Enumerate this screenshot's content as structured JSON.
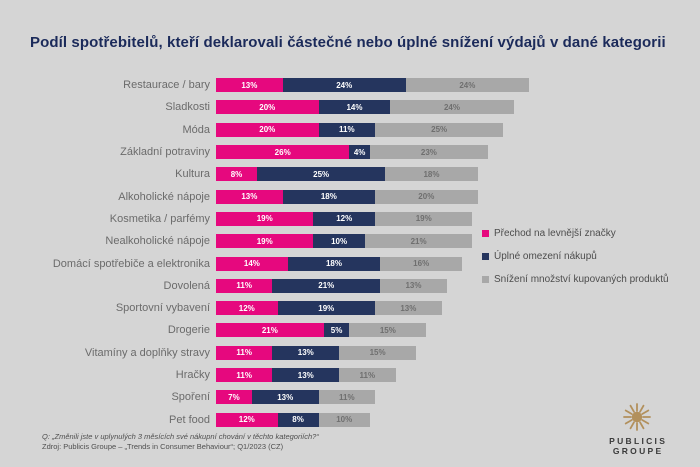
{
  "title": "Podíl spotřebitelů, kteří deklarovali částečné nebo úplné snížení výdajů v dané kategorii",
  "chart_data": {
    "type": "bar",
    "orientation": "horizontal",
    "stacked": true,
    "grid": false,
    "legend_position": "right",
    "value_suffix": "%",
    "categories": [
      "Restaurace / bary",
      "Sladkosti",
      "Móda",
      "Základní potraviny",
      "Kultura",
      "Alkoholické nápoje",
      "Kosmetika / parfémy",
      "Nealkoholické nápoje",
      "Domácí spotřebiče a elektronika",
      "Dovolená",
      "Sportovní vybavení",
      "Drogerie",
      "Vitamíny a doplňky stravy",
      "Hračky",
      "Spoření",
      "Pet food"
    ],
    "series": [
      {
        "name": "Přechod na levnější značky",
        "color": "#e6087e",
        "values": [
          13,
          20,
          20,
          26,
          8,
          13,
          19,
          19,
          14,
          11,
          12,
          21,
          11,
          11,
          7,
          12
        ]
      },
      {
        "name": "Úplné omezení nákupů",
        "color": "#25355e",
        "values": [
          24,
          14,
          11,
          4,
          25,
          18,
          12,
          10,
          18,
          21,
          19,
          5,
          13,
          13,
          13,
          8
        ]
      },
      {
        "name": "Snížení množství kupovaných produktů",
        "color": "#a8a8a8",
        "values": [
          24,
          24,
          25,
          23,
          18,
          20,
          19,
          21,
          16,
          13,
          13,
          15,
          15,
          11,
          11,
          10
        ]
      }
    ]
  },
  "footer": {
    "question": "Q: „Změnili jste v uplynulých 3 měsících své nákupní chování v těchto kategoriích?“",
    "source": "Zdroj: Publicis Groupe – „Trends in Consumer Behaviour“; Q1/2023 (CZ)"
  },
  "logo": {
    "line1": "PUBLICIS",
    "line2": "GROUPE",
    "emblem_color": "#b2905c"
  }
}
